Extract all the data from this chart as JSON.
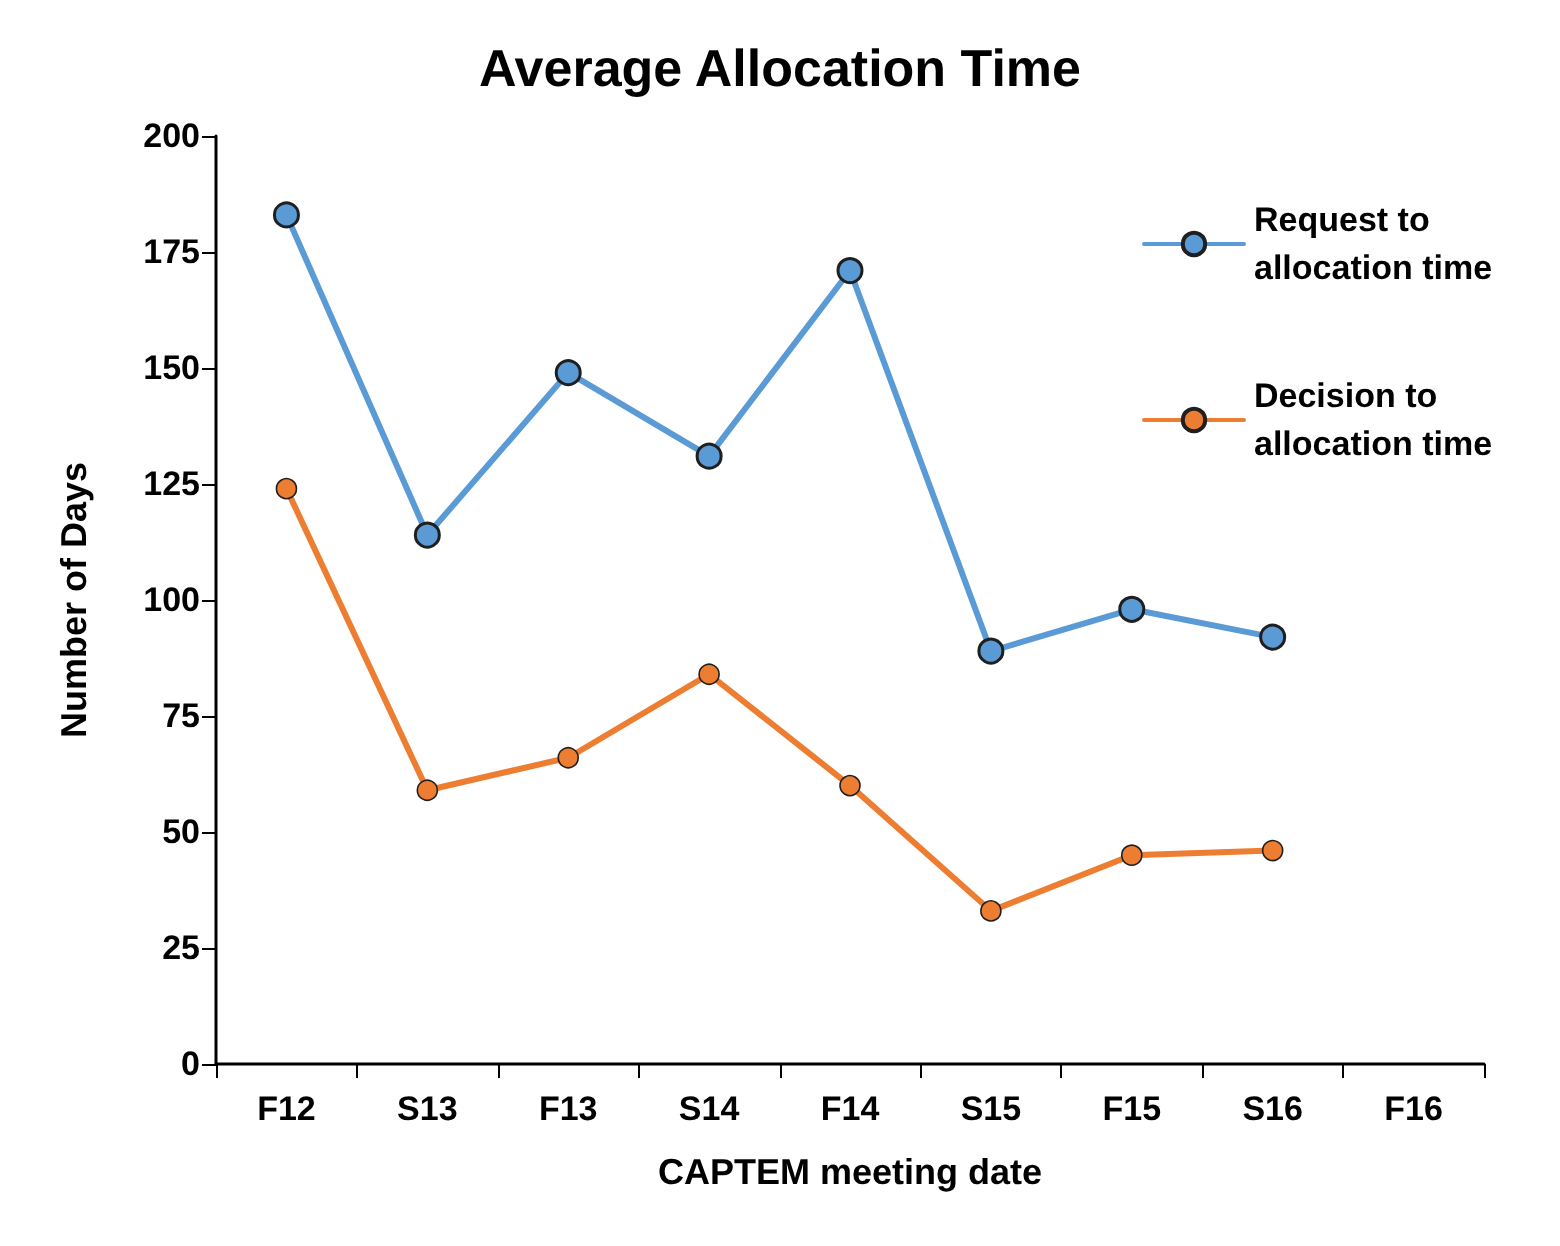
{
  "chart_data": {
    "type": "line",
    "title": "Average Allocation Time",
    "xlabel": "CAPTEM meeting date",
    "ylabel": "Number of Days",
    "categories": [
      "F12",
      "S13",
      "F13",
      "S14",
      "F14",
      "S15",
      "F15",
      "S16",
      "F16"
    ],
    "series": [
      {
        "name": "Request to allocation time",
        "color": "#5b9bd5",
        "values": [
          183,
          114,
          149,
          131,
          171,
          89,
          98,
          92,
          null
        ]
      },
      {
        "name": "Decision to allocation time",
        "color": "#ed7d31",
        "values": [
          124,
          59,
          66,
          84,
          60,
          33,
          45,
          46,
          null
        ]
      }
    ],
    "ylim": [
      0,
      200
    ],
    "yticks": [
      0,
      25,
      50,
      75,
      100,
      125,
      150,
      175,
      200
    ],
    "grid": false,
    "legend": "top right",
    "marker": "circle",
    "line_style": "solid"
  }
}
